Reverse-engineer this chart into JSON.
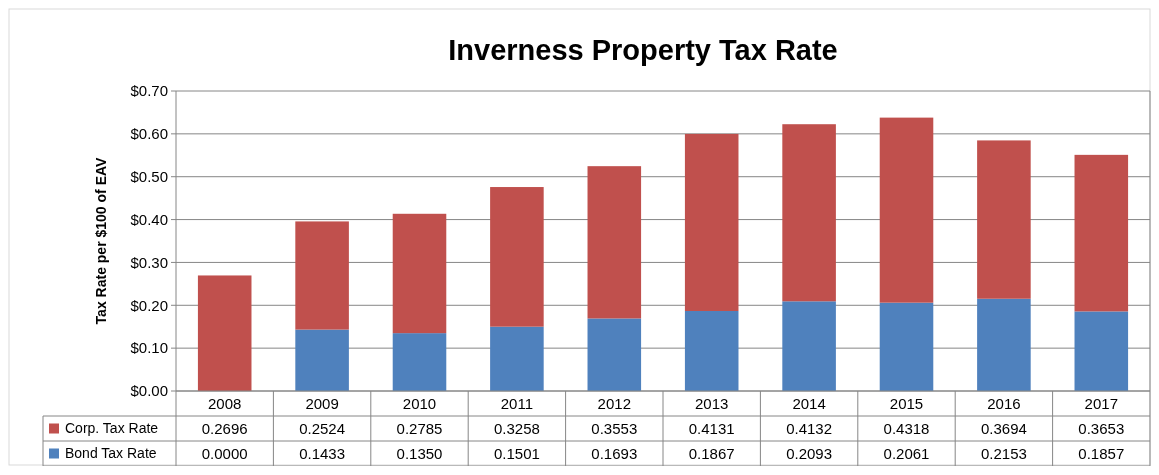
{
  "chart_data": {
    "type": "bar",
    "title": "Inverness Property Tax Rate",
    "ylabel": "Tax Rate per $100 of EAV",
    "stacked": true,
    "grid": "y",
    "legend": "bottom",
    "categories": [
      "2008",
      "2009",
      "2010",
      "2011",
      "2012",
      "2013",
      "2014",
      "2015",
      "2016",
      "2017"
    ],
    "ylim": [
      0,
      0.7
    ],
    "yticks": [
      {
        "value": 0,
        "label": "$0.00"
      },
      {
        "value": 0.1,
        "label": "$0.10"
      },
      {
        "value": 0.2,
        "label": "$0.20"
      },
      {
        "value": 0.3,
        "label": "$0.30"
      },
      {
        "value": 0.4,
        "label": "$0.40"
      },
      {
        "value": 0.5,
        "label": "$0.50"
      },
      {
        "value": 0.6,
        "label": "$0.60"
      },
      {
        "value": 0.7,
        "label": "$0.70"
      }
    ],
    "series": [
      {
        "name": "Bond Tax Rate",
        "color": "#4f81bd",
        "values": [
          0,
          0.1433,
          0.135,
          0.1501,
          0.1693,
          0.1867,
          0.2093,
          0.2061,
          0.2153,
          0.1857
        ],
        "value_labels": [
          "0.0000",
          "0.1433",
          "0.1350",
          "0.1501",
          "0.1693",
          "0.1867",
          "0.2093",
          "0.2061",
          "0.2153",
          "0.1857"
        ]
      },
      {
        "name": "Corp. Tax Rate",
        "color": "#c0504d",
        "values": [
          0.2696,
          0.2524,
          0.2785,
          0.3258,
          0.3553,
          0.4131,
          0.4132,
          0.4318,
          0.3694,
          0.3653
        ],
        "value_labels": [
          "0.2696",
          "0.2524",
          "0.2785",
          "0.3258",
          "0.3553",
          "0.4131",
          "0.4132",
          "0.4318",
          "0.3694",
          "0.3653"
        ]
      }
    ]
  }
}
